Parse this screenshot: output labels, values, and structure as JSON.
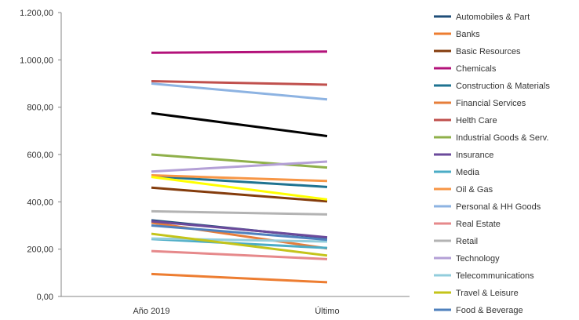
{
  "chart_data": {
    "type": "line",
    "title": "",
    "xlabel": "",
    "ylabel": "",
    "categories": [
      "Año 2019",
      "Último"
    ],
    "ylim": [
      0,
      1200
    ],
    "yticks": [
      0,
      200,
      400,
      600,
      800,
      1000,
      1200
    ],
    "ytick_labels": [
      "0,00",
      "200,00",
      "400,00",
      "600,00",
      "800,00",
      "1.000,00",
      "1.200,00"
    ],
    "grid": false,
    "legend_position": "right",
    "series": [
      {
        "name": "Automobiles & Part",
        "color": "#1f4e79",
        "values": [
          322,
          248
        ]
      },
      {
        "name": "Banks",
        "color": "#ed7d31",
        "values": [
          95,
          60
        ]
      },
      {
        "name": "Basic Resources",
        "color": "#843c0c",
        "values": [
          460,
          402
        ]
      },
      {
        "name": "Chemicals",
        "color": "#b3127a",
        "values": [
          1030,
          1035
        ]
      },
      {
        "name": "Construction & Materials",
        "color": "#1f7391",
        "values": [
          508,
          463
        ]
      },
      {
        "name": "Financial Services",
        "color": "#e67e3b",
        "values": [
          312,
          203
        ]
      },
      {
        "name": "Helth Care",
        "color": "#c0504d",
        "values": [
          910,
          895
        ]
      },
      {
        "name": "Industrial Goods & Serv.",
        "color": "#8fb04a",
        "values": [
          600,
          545
        ]
      },
      {
        "name": "Insurance",
        "color": "#6b4a9b",
        "values": [
          318,
          250
        ]
      },
      {
        "name": "Media",
        "color": "#4bacc6",
        "values": [
          243,
          205
        ]
      },
      {
        "name": "Oil & Gas",
        "color": "#f79646",
        "values": [
          512,
          488
        ]
      },
      {
        "name": "Personal & HH Goods",
        "color": "#8db3e2",
        "values": [
          900,
          833
        ]
      },
      {
        "name": "Real Estate",
        "color": "#e6898b",
        "values": [
          192,
          158
        ]
      },
      {
        "name": "Retail",
        "color": "#b3b3b3",
        "values": [
          360,
          347
        ]
      },
      {
        "name": "Technology",
        "color": "#b4a0d6",
        "values": [
          528,
          570
        ]
      },
      {
        "name": "Telecommunications",
        "color": "#92cddc",
        "values": [
          245,
          232
        ]
      },
      {
        "name": "Travel & Leisure",
        "color": "#c4c41a",
        "values": [
          265,
          173
        ]
      },
      {
        "name": "Food & Beverage",
        "color": "#4f81bd",
        "values": [
          300,
          240
        ]
      },
      {
        "color": "#000000",
        "values": [
          775,
          678
        ]
      },
      {
        "color": "#ffff00",
        "values": [
          505,
          410
        ]
      }
    ]
  }
}
